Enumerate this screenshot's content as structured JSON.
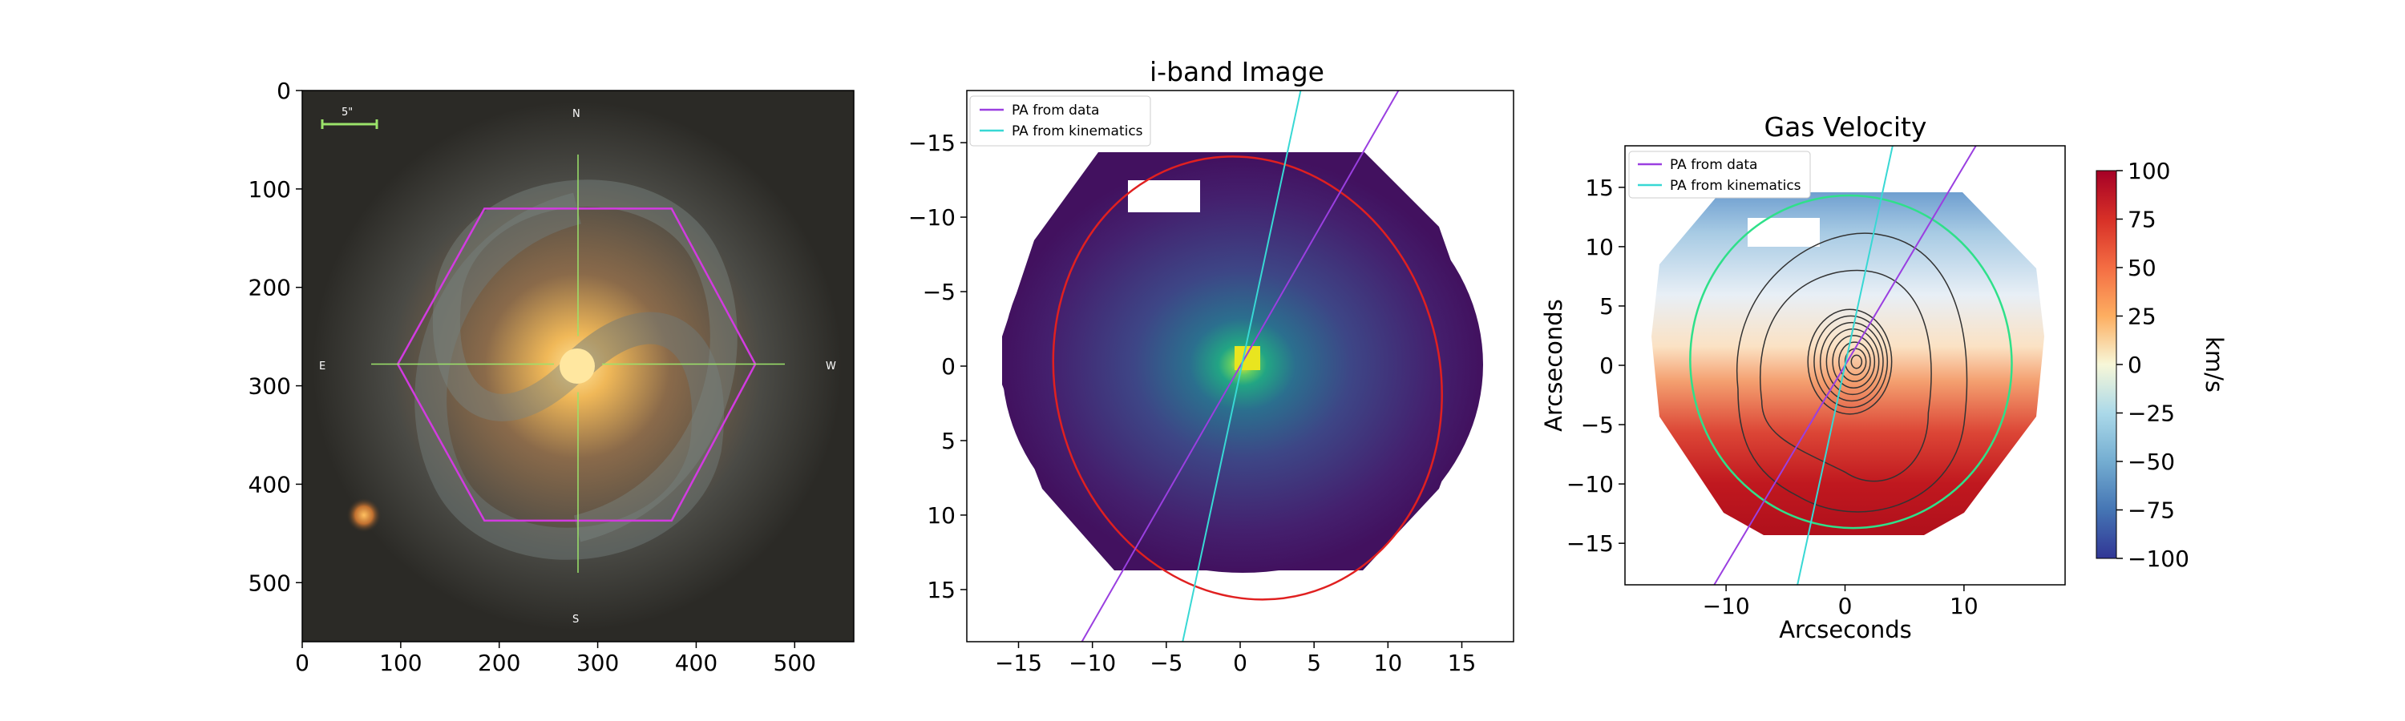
{
  "colors": {
    "hexagon": "#d23be0",
    "crosshair": "#9be36a",
    "pa_data": "#9a3fe0",
    "pa_kinematics": "#38d8d4",
    "fit_ellipse_iband": "#e02020",
    "fit_ellipse_gas": "#2fe08a",
    "contours": "#333333",
    "iband_background": "#3b0f63"
  },
  "chart_data": [
    {
      "type": "image",
      "panel": "galaxy-rgb",
      "title": "",
      "xlim": [
        0,
        560
      ],
      "ylim": [
        560,
        0
      ],
      "xticks": [
        0,
        100,
        200,
        300,
        400,
        500
      ],
      "yticks": [
        0,
        100,
        200,
        300,
        400,
        500
      ],
      "compass": {
        "north": "N",
        "south": "S",
        "east": "E",
        "west": "W"
      },
      "scale_bar": "5\"",
      "ifu_hexagon": [
        [
          97,
          278
        ],
        [
          185,
          120
        ],
        [
          375,
          120
        ],
        [
          460,
          278
        ],
        [
          375,
          437
        ],
        [
          185,
          437
        ]
      ],
      "crosshair_center": [
        280,
        278
      ],
      "galaxy_center": [
        280,
        278
      ],
      "companion_source": [
        60,
        430
      ]
    },
    {
      "type": "heatmap",
      "panel": "i-band",
      "title": "i-band Image",
      "xlim": [
        -18.5,
        18.5
      ],
      "ylim": [
        18.5,
        -18.5
      ],
      "xticks": [
        -15,
        -10,
        -5,
        0,
        5,
        10,
        15
      ],
      "yticks": [
        -15,
        -10,
        -5,
        0,
        5,
        10,
        15
      ],
      "legend": [
        "PA from data",
        "PA from kinematics"
      ],
      "legend_position": "top-left",
      "pa_data_line": [
        [
          -11,
          19
        ],
        [
          11,
          -19
        ]
      ],
      "pa_kinematics_line": [
        [
          -4,
          19
        ],
        [
          4.2,
          -19
        ]
      ],
      "fit_ellipse": {
        "center": [
          0.5,
          0.8
        ],
        "semi_axes": [
          13,
          15
        ],
        "rotation_deg": -15
      },
      "peak": [
        0.3,
        -0.3
      ]
    },
    {
      "type": "heatmap",
      "panel": "gas-velocity",
      "title": "Gas Velocity",
      "xlabel": "Arcseconds",
      "ylabel": "Arcseconds",
      "xlim": [
        -18.5,
        18.5
      ],
      "ylim": [
        -18.5,
        18.5
      ],
      "xticks": [
        -10,
        0,
        10
      ],
      "yticks": [
        15,
        10,
        5,
        0,
        -5,
        -10,
        -15
      ],
      "legend": [
        "PA from data",
        "PA from kinematics"
      ],
      "legend_position": "top-left",
      "colorbar": {
        "label": "km/s",
        "range": [
          -100,
          100
        ],
        "ticks": [
          100,
          75,
          50,
          25,
          0,
          -25,
          -50,
          -75,
          -100
        ]
      },
      "pa_data_line": [
        [
          -11,
          -18.5
        ],
        [
          11,
          18.5
        ]
      ],
      "pa_kinematics_line": [
        [
          -4,
          -18.5
        ],
        [
          4,
          18.5
        ]
      ],
      "fit_ellipse": {
        "center": [
          0.5,
          0.3
        ],
        "semi_axes": [
          13.5,
          14
        ],
        "rotation_deg": -10
      },
      "contour_levels": [
        1,
        2,
        3,
        4,
        5,
        6,
        7,
        8
      ]
    }
  ]
}
